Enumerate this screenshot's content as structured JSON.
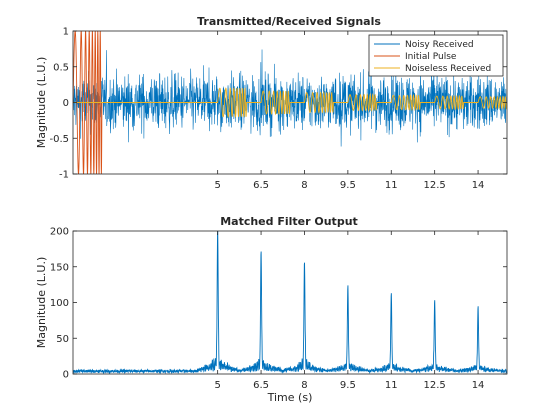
{
  "chart_data": [
    {
      "type": "line",
      "title": "Transmitted/Received Signals",
      "xlabel": "",
      "ylabel": "Magnitude (L.U.)",
      "xlim": [
        0,
        15
      ],
      "ylim": [
        -1,
        1
      ],
      "xticks": [
        5,
        6.5,
        8,
        9.5,
        11,
        12.5,
        14
      ],
      "xtick_labels": [
        "5",
        "6.5",
        "8",
        "9.5",
        "11",
        "12.5",
        "14"
      ],
      "yticks": [
        -1,
        -0.5,
        0,
        0.5,
        1
      ],
      "ytick_labels": [
        "-1",
        "-0.5",
        "0",
        "0.5",
        "1"
      ],
      "legend": "top-right",
      "series": [
        {
          "name": "Noisy Received",
          "color": "#0072BD",
          "noise_amplitude": 0.35,
          "x_range": [
            0,
            15
          ]
        },
        {
          "name": "Initial Pulse",
          "color": "#D95319",
          "x_range": [
            0,
            1
          ],
          "amplitude": 1
        },
        {
          "name": "Noiseless Received",
          "color": "#EDB120",
          "echo_starts": [
            5,
            6.5,
            8,
            9.5,
            11,
            12.5,
            14
          ],
          "echo_duration": 1,
          "echo_amplitudes": [
            0.2,
            0.16,
            0.14,
            0.11,
            0.1,
            0.09,
            0.08
          ]
        }
      ]
    },
    {
      "type": "line",
      "title": "Matched Filter Output",
      "xlabel": "Time (s)",
      "ylabel": "Magnitude (L.U.)",
      "xlim": [
        0,
        15
      ],
      "ylim": [
        0,
        200
      ],
      "xticks": [
        5,
        6.5,
        8,
        9.5,
        11,
        12.5,
        14
      ],
      "xtick_labels": [
        "5",
        "6.5",
        "8",
        "9.5",
        "11",
        "12.5",
        "14"
      ],
      "yticks": [
        0,
        50,
        100,
        150,
        200
      ],
      "ytick_labels": [
        "0",
        "50",
        "100",
        "150",
        "200"
      ],
      "series": [
        {
          "color": "#0072BD",
          "peaks": [
            {
              "x": 5,
              "y": 200
            },
            {
              "x": 6.5,
              "y": 170
            },
            {
              "x": 8,
              "y": 155
            },
            {
              "x": 9.5,
              "y": 120
            },
            {
              "x": 11,
              "y": 110
            },
            {
              "x": 12.5,
              "y": 100
            },
            {
              "x": 14,
              "y": 90
            }
          ],
          "baseline": 4
        }
      ]
    }
  ]
}
